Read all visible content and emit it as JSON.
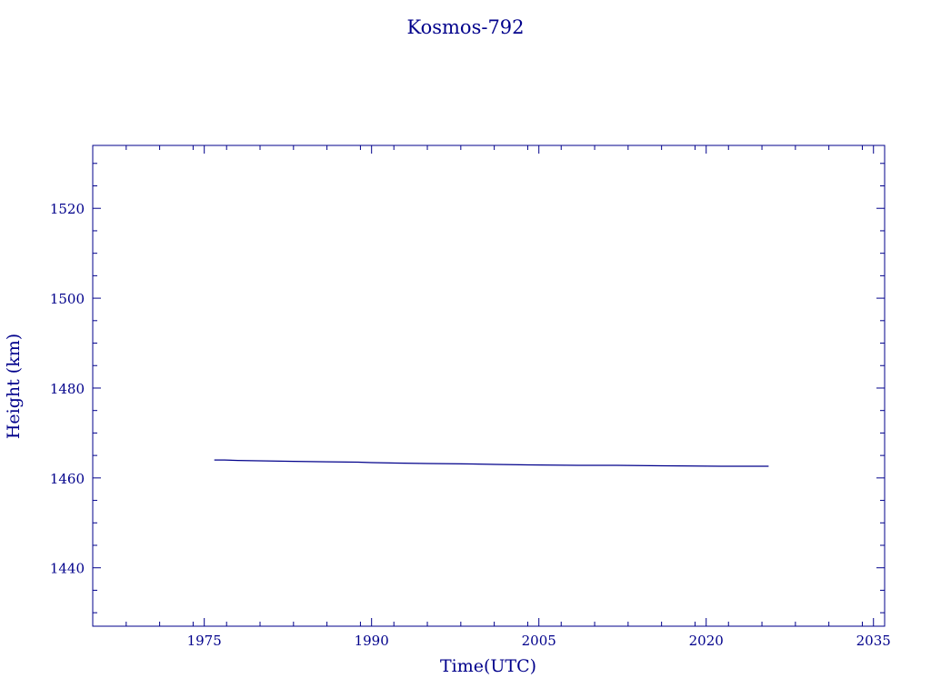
{
  "chart_data": {
    "type": "line",
    "title": "Kosmos-792",
    "xlabel": "Time(UTC)",
    "ylabel": "Height (km)",
    "xlim": [
      1965,
      2036
    ],
    "ylim": [
      1427,
      1534
    ],
    "xticks": [
      1975,
      1990,
      2005,
      2020,
      2035
    ],
    "yticks": [
      1440,
      1460,
      1480,
      1500,
      1520
    ],
    "x_minor_step": 3,
    "y_minor_step": 5,
    "grid": false,
    "color": "#00008b",
    "series": [
      {
        "x": [
          1975.9,
          1976.8,
          1978.0,
          1980.5,
          1983.0,
          1986.0,
          1988.8,
          1990.0,
          1992.2,
          1995.0,
          1999.0,
          2001.2,
          2004.0,
          2008.8,
          2012.0,
          2016.0,
          2021.3,
          2025.6
        ],
        "y": [
          1464.0,
          1464.0,
          1463.9,
          1463.8,
          1463.7,
          1463.6,
          1463.5,
          1463.4,
          1463.3,
          1463.2,
          1463.1,
          1463.0,
          1462.9,
          1462.8,
          1462.8,
          1462.7,
          1462.6,
          1462.6
        ]
      }
    ]
  }
}
